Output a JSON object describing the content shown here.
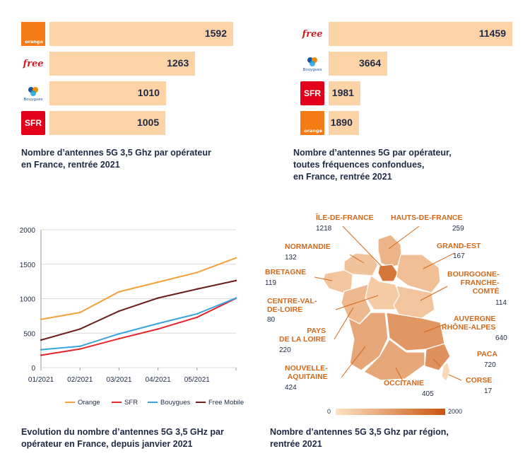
{
  "chart_data": [
    {
      "type": "bar",
      "orientation": "horizontal",
      "categories": [
        "orange",
        "free",
        "bouygues",
        "SFR"
      ],
      "values": [
        1592,
        1263,
        1010,
        1005
      ],
      "value_labels": [
        "1592",
        "1263",
        "1010",
        "1005"
      ],
      "title": "Nombre d’antennes 5G 3,5 Ghz par opérateur en France, rentrée 2021",
      "title_lines": [
        "Nombre d’antennes 5G 3,5 Ghz par opérateur",
        "en France, rentrée 2021"
      ],
      "bar_color": "#fcd3a6"
    },
    {
      "type": "bar",
      "orientation": "horizontal",
      "categories": [
        "free",
        "bouygues",
        "SFR",
        "orange"
      ],
      "values": [
        11459,
        3664,
        1981,
        1890
      ],
      "value_labels": [
        "11459",
        "3664",
        "1981",
        "1890"
      ],
      "title": "Nombre d’antennes 5G par opérateur, toutes fréquences confondues, en France, rentrée 2021",
      "title_lines": [
        "Nombre d’antennes 5G par opérateur,",
        "toutes fréquences confondues,",
        "en France, rentrée 2021"
      ],
      "bar_color": "#fcd3a6"
    },
    {
      "type": "line",
      "x": [
        "01/2021",
        "02/2021",
        "03/2021",
        "04/2021",
        "05/2021",
        ""
      ],
      "x_tick_labels": [
        "01/2021",
        "02/2021",
        "03/2021",
        "04/2021",
        "05/2021"
      ],
      "series": [
        {
          "name": "Orange",
          "color": "#f2a23a",
          "values": [
            700,
            800,
            1100,
            1240,
            1380,
            1592
          ]
        },
        {
          "name": "SFR",
          "color": "#e2252b",
          "values": [
            180,
            270,
            420,
            560,
            730,
            1005
          ]
        },
        {
          "name": "Bouygues",
          "color": "#3aa3dc",
          "values": [
            260,
            310,
            490,
            640,
            780,
            1010
          ]
        },
        {
          "name": "Free Mobile",
          "color": "#6b1c1c",
          "values": [
            400,
            560,
            820,
            1010,
            1140,
            1263
          ]
        }
      ],
      "ylim": [
        0,
        2000
      ],
      "y_ticks": [
        0,
        500,
        1000,
        1500,
        2000
      ],
      "y_tick_labels": [
        "0",
        "500",
        "1000",
        "1500",
        "2000"
      ],
      "grid": true,
      "legend_position": "bottom",
      "title": "Evolution du nombre d’antennes 5G 3,5 GHz par opérateur en France, depuis janvier 2021",
      "title_lines": [
        "Evolution du nombre d’antennes 5G 3,5 GHz par",
        "opérateur en France, depuis janvier 2021"
      ]
    },
    {
      "type": "choropleth",
      "regions": [
        {
          "name": "ÎLE-DE-FRANCE",
          "label_lines": [
            "ÎLE-DE-FRANCE"
          ],
          "value": 1218,
          "value_label": "1218"
        },
        {
          "name": "HAUTS-DE-FRANCE",
          "label_lines": [
            "HAUTS-DE-FRANCE"
          ],
          "value": 259,
          "value_label": "259"
        },
        {
          "name": "NORMANDIE",
          "label_lines": [
            "NORMANDIE"
          ],
          "value": 132,
          "value_label": "132"
        },
        {
          "name": "GRAND-EST",
          "label_lines": [
            "GRAND-EST"
          ],
          "value": 167,
          "value_label": "167"
        },
        {
          "name": "BRETAGNE",
          "label_lines": [
            "BRETAGNE"
          ],
          "value": 119,
          "value_label": "119"
        },
        {
          "name": "BOURGOGNE-FRANCHE-COMTÉ",
          "label_lines": [
            "BOURGOGNE-",
            "FRANCHE-",
            "COMTÉ"
          ],
          "value": 114,
          "value_label": "114"
        },
        {
          "name": "CENTRE-VAL-DE-LOIRE",
          "label_lines": [
            "CENTRE-VAL-",
            "DE-LOIRE"
          ],
          "value": 80,
          "value_label": "80"
        },
        {
          "name": "AUVERGNE RHÔNE-ALPES",
          "label_lines": [
            "AUVERGNE",
            "RHÔNE-ALPES"
          ],
          "value": 640,
          "value_label": "640"
        },
        {
          "name": "PAYS DE LA LOIRE",
          "label_lines": [
            "PAYS",
            "DE LA LOIRE"
          ],
          "value": 220,
          "value_label": "220"
        },
        {
          "name": "PACA",
          "label_lines": [
            "PACA"
          ],
          "value": 720,
          "value_label": "720"
        },
        {
          "name": "NOUVELLE-AQUITAINE",
          "label_lines": [
            "NOUVELLE-",
            "AQUITAINE"
          ],
          "value": 424,
          "value_label": "424"
        },
        {
          "name": "OCCITANIE",
          "label_lines": [
            "OCCITANIE"
          ],
          "value": 405,
          "value_label": "405"
        },
        {
          "name": "CORSE",
          "label_lines": [
            "CORSE"
          ],
          "value": 17,
          "value_label": "17"
        }
      ],
      "color_scale": {
        "min": 0,
        "max": 2000,
        "min_label": "0",
        "max_label": "2000",
        "low_color": "#fde3c4",
        "high_color": "#c9540f"
      },
      "title": "Nombre d’antennes 5G 3,5 Ghz par région, rentrée 2021",
      "title_lines": [
        "Nombre d’antennes 5G 3,5 Ghz par région,",
        "rentrée 2021"
      ]
    }
  ],
  "logos": {
    "orange": {
      "text": "orange",
      "color": "#f47b16"
    },
    "free": {
      "text": "free",
      "color": "#cd1e25"
    },
    "bouygues": {
      "text": "Bouygues",
      "color": "#1a56a0"
    },
    "sfr": {
      "text": "SFR",
      "color": "#e2001a"
    }
  }
}
